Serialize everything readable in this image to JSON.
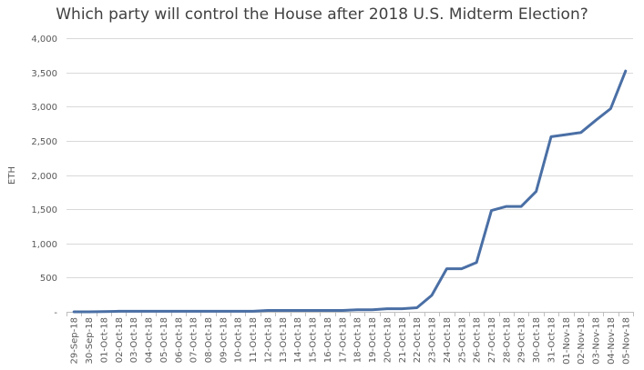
{
  "chart_data": {
    "type": "line",
    "title": "Which party will control the House after 2018 U.S. Midterm Election?",
    "xlabel": "",
    "ylabel": "ETH",
    "ylim": [
      0,
      4000
    ],
    "yticks": [
      0,
      500,
      1000,
      1500,
      2000,
      2500,
      3000,
      3500,
      4000
    ],
    "ytick_labels": [
      "-",
      "500",
      "1,000",
      "1,500",
      "2,000",
      "2,500",
      "3,000",
      "3,500",
      "4,000"
    ],
    "grid": true,
    "legend": "none",
    "colors": {
      "line": "#4A6FA5",
      "grid": "#D9D9D9",
      "axis": "#BFBFBF"
    },
    "categories": [
      "29-Sep-18",
      "30-Sep-18",
      "01-Oct-18",
      "02-Oct-18",
      "03-Oct-18",
      "04-Oct-18",
      "05-Oct-18",
      "06-Oct-18",
      "07-Oct-18",
      "08-Oct-18",
      "09-Oct-18",
      "10-Oct-18",
      "11-Oct-18",
      "12-Oct-18",
      "13-Oct-18",
      "14-Oct-18",
      "15-Oct-18",
      "16-Oct-18",
      "17-Oct-18",
      "18-Oct-18",
      "19-Oct-18",
      "20-Oct-18",
      "21-Oct-18",
      "22-Oct-18",
      "23-Oct-18",
      "24-Oct-18",
      "25-Oct-18",
      "26-Oct-18",
      "27-Oct-18",
      "28-Oct-18",
      "29-Oct-18",
      "30-Oct-18",
      "31-Oct-18",
      "01-Nov-18",
      "02-Nov-18",
      "03-Nov-18",
      "04-Nov-18",
      "05-Nov-18"
    ],
    "series": [
      {
        "name": "",
        "values": [
          0,
          0,
          2,
          8,
          8,
          8,
          8,
          8,
          8,
          8,
          8,
          8,
          8,
          20,
          20,
          20,
          20,
          20,
          20,
          30,
          30,
          45,
          45,
          60,
          240,
          630,
          630,
          720,
          1480,
          1540,
          1540,
          1760,
          2560,
          2590,
          2620,
          2800,
          2970,
          3520
        ]
      }
    ]
  }
}
